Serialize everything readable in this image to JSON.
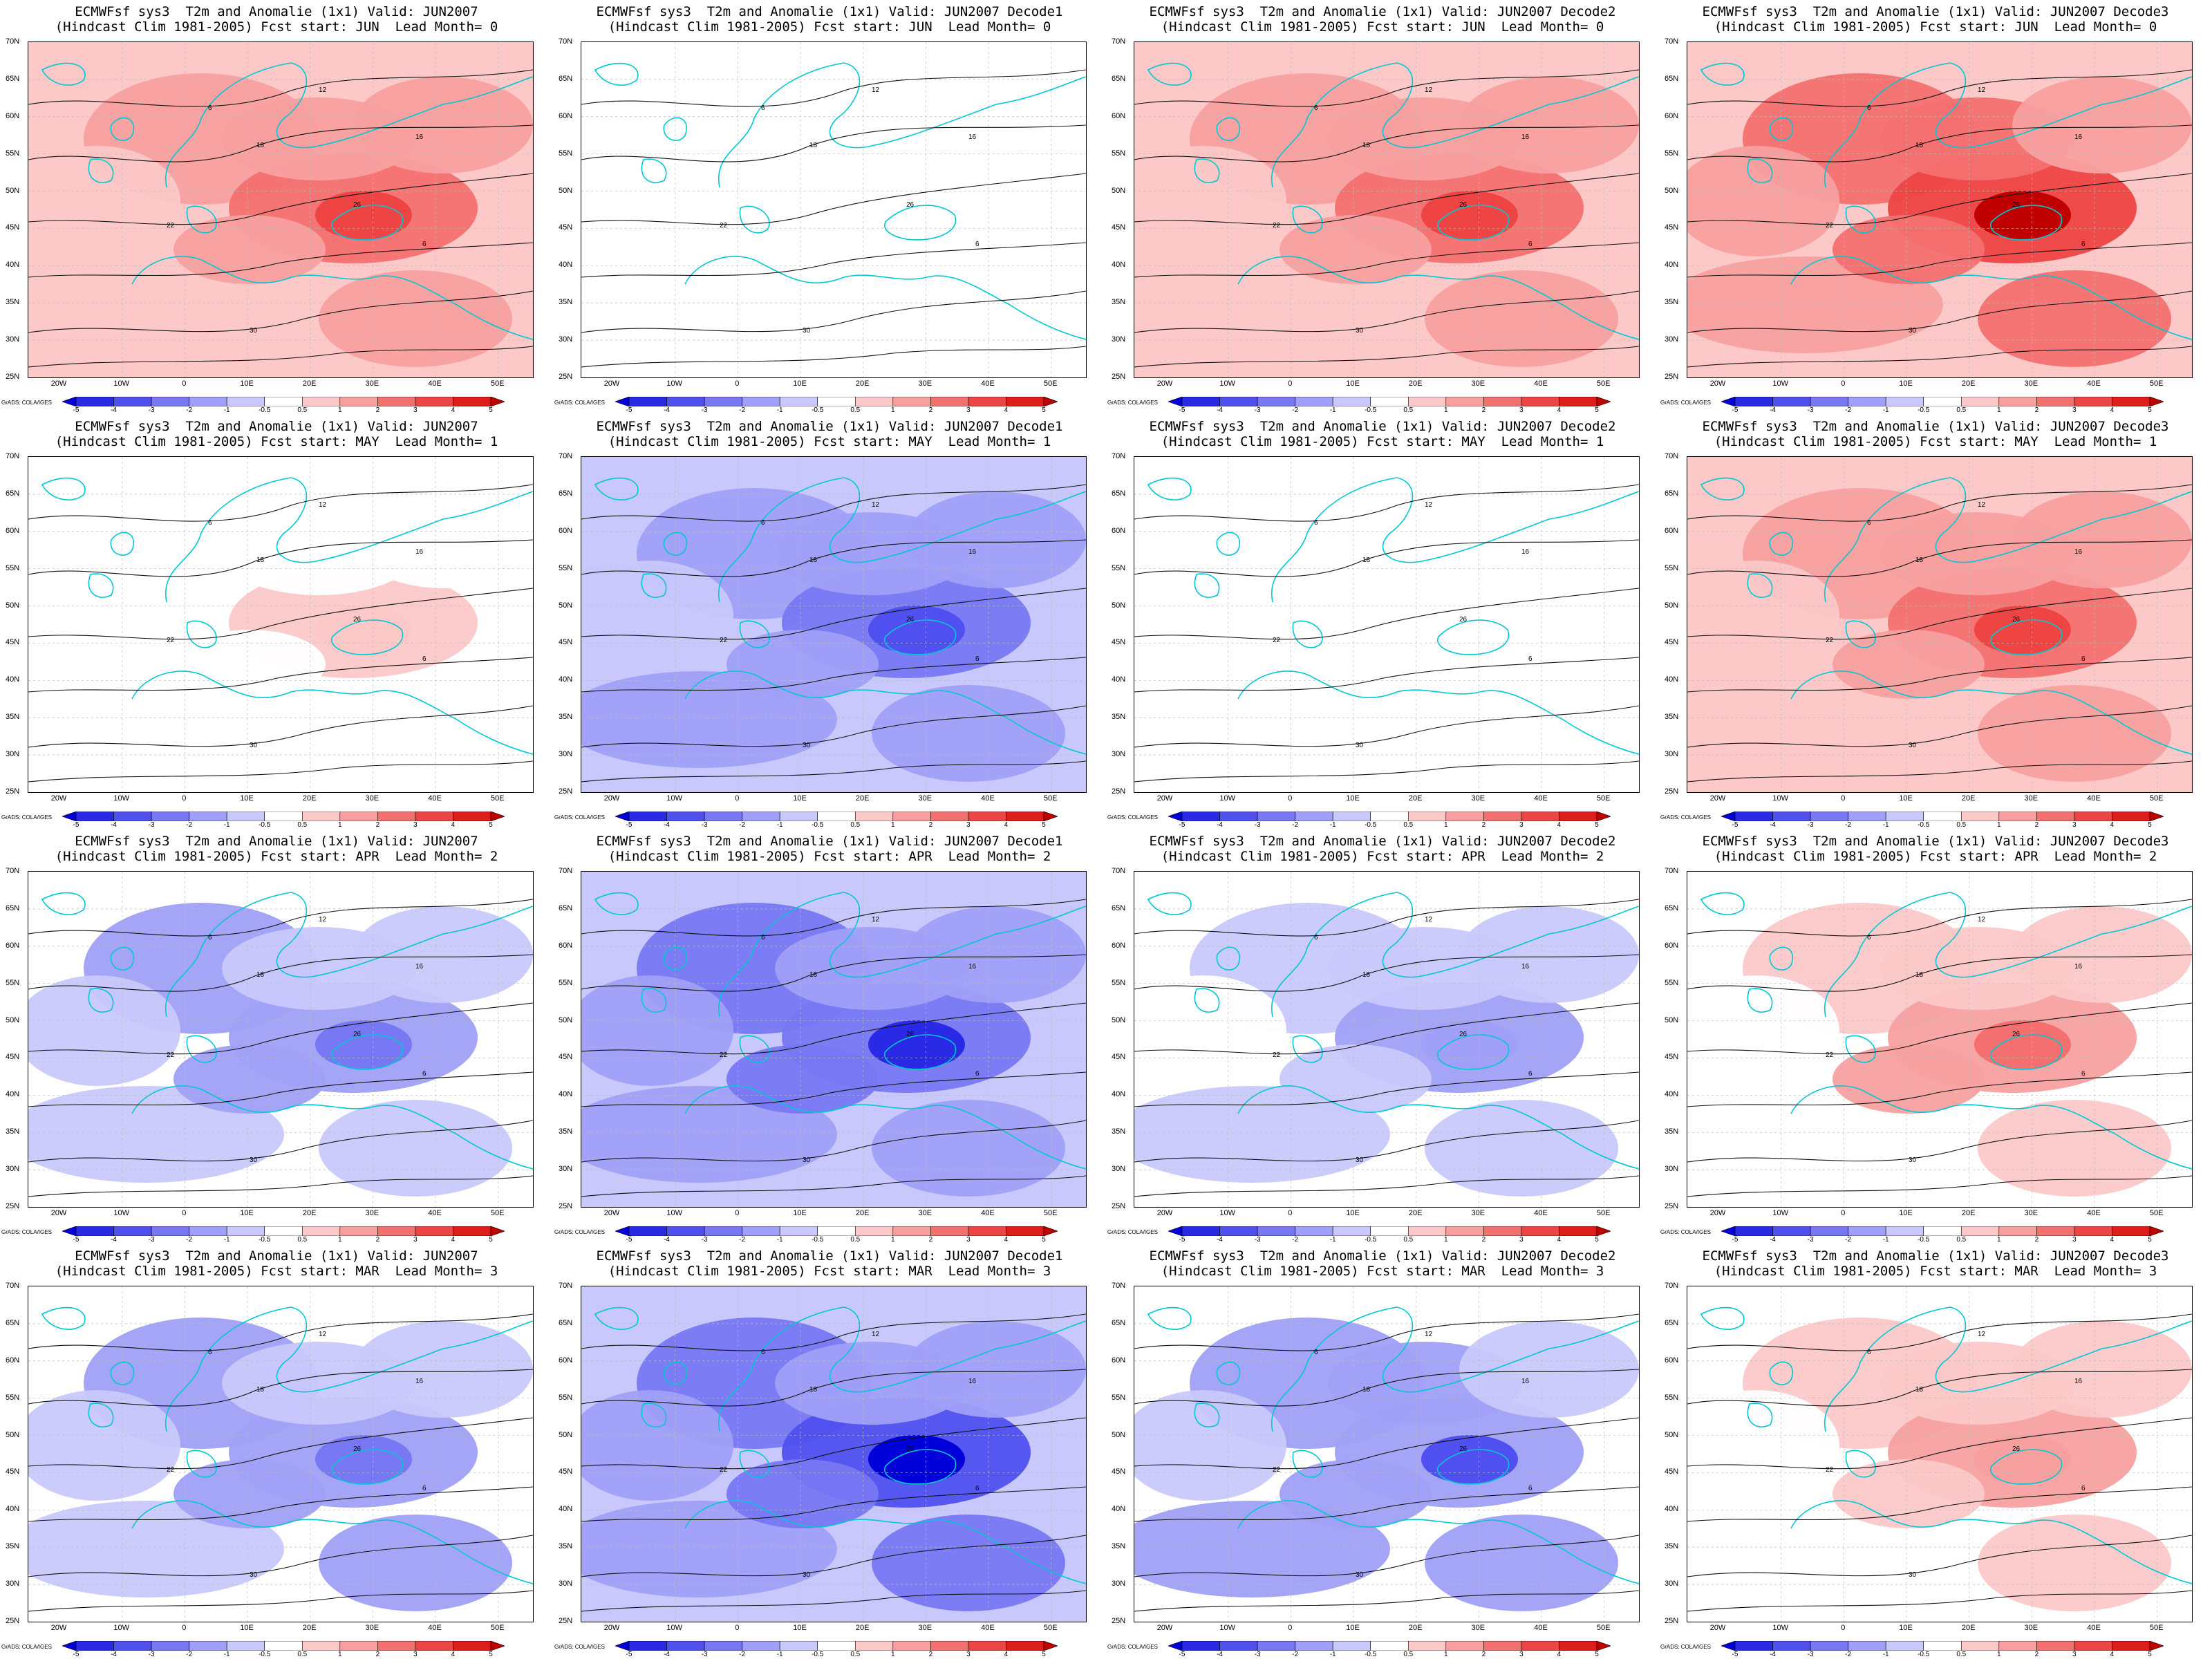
{
  "panels": [
    {
      "title1": "ECMWFsf sys3  T2m and Anomalie (1x1) Valid: JUN2007",
      "title2": "(Hindcast Clim 1981-2005) Fcst start: JUN  Lead Month= 0",
      "anom": 1.6
    },
    {
      "title1": "ECMWFsf sys3  T2m and Anomalie (1x1) Valid: JUN2007 Decode1",
      "title2": "(Hindcast Clim 1981-2005) Fcst start: JUN  Lead Month= 0",
      "anom": 0.2
    },
    {
      "title1": "ECMWFsf sys3  T2m and Anomalie (1x1) Valid: JUN2007 Decode2",
      "title2": "(Hindcast Clim 1981-2005) Fcst start: JUN  Lead Month= 0",
      "anom": 1.8
    },
    {
      "title1": "ECMWFsf sys3  T2m and Anomalie (1x1) Valid: JUN2007 Decode3",
      "title2": "(Hindcast Clim 1981-2005) Fcst start: JUN  Lead Month= 0",
      "anom": 2.6
    },
    {
      "title1": "ECMWFsf sys3  T2m and Anomalie (1x1) Valid: JUN2007",
      "title2": "(Hindcast Clim 1981-2005) Fcst start: MAY  Lead Month= 1",
      "anom": 0.4
    },
    {
      "title1": "ECMWFsf sys3  T2m and Anomalie (1x1) Valid: JUN2007 Decode1",
      "title2": "(Hindcast Clim 1981-2005) Fcst start: MAY  Lead Month= 1",
      "anom": -1.6
    },
    {
      "title1": "ECMWFsf sys3  T2m and Anomalie (1x1) Valid: JUN2007 Decode2",
      "title2": "(Hindcast Clim 1981-2005) Fcst start: MAY  Lead Month= 1",
      "anom": 0.2
    },
    {
      "title1": "ECMWFsf sys3  T2m and Anomalie (1x1) Valid: JUN2007 Decode3",
      "title2": "(Hindcast Clim 1981-2005) Fcst start: MAY  Lead Month= 1",
      "anom": 1.6
    },
    {
      "title1": "ECMWFsf sys3  T2m and Anomalie (1x1) Valid: JUN2007",
      "title2": "(Hindcast Clim 1981-2005) Fcst start: APR  Lead Month= 2",
      "anom": -1.0
    },
    {
      "title1": "ECMWFsf sys3  T2m and Anomalie (1x1) Valid: JUN2007 Decode1",
      "title2": "(Hindcast Clim 1981-2005) Fcst start: APR  Lead Month= 2",
      "anom": -2.2
    },
    {
      "title1": "ECMWFsf sys3  T2m and Anomalie (1x1) Valid: JUN2007 Decode2",
      "title2": "(Hindcast Clim 1981-2005) Fcst start: APR  Lead Month= 2",
      "anom": -0.9
    },
    {
      "title1": "ECMWFsf sys3  T2m and Anomalie (1x1) Valid: JUN2007 Decode3",
      "title2": "(Hindcast Clim 1981-2005) Fcst start: APR  Lead Month= 2",
      "anom": 1.0
    },
    {
      "title1": "ECMWFsf sys3  T2m and Anomalie (1x1) Valid: JUN2007",
      "title2": "(Hindcast Clim 1981-2005) Fcst start: MAR  Lead Month= 3",
      "anom": -1.2
    },
    {
      "title1": "ECMWFsf sys3  T2m and Anomalie (1x1) Valid: JUN2007 Decode1",
      "title2": "(Hindcast Clim 1981-2005) Fcst start: MAR  Lead Month= 3",
      "anom": -2.4
    },
    {
      "title1": "ECMWFsf sys3  T2m and Anomalie (1x1) Valid: JUN2007 Decode2",
      "title2": "(Hindcast Clim 1981-2005) Fcst start: MAR  Lead Month= 3",
      "anom": -1.4
    },
    {
      "title1": "ECMWFsf sys3  T2m and Anomalie (1x1) Valid: JUN2007 Decode3",
      "title2": "(Hindcast Clim 1981-2005) Fcst start: MAR  Lead Month= 3",
      "anom": 0.8
    }
  ],
  "lat_labels": [
    "70N",
    "65N",
    "60N",
    "55N",
    "50N",
    "45N",
    "40N",
    "35N",
    "30N",
    "25N"
  ],
  "lon_labels": [
    "20W",
    "10W",
    "0",
    "10E",
    "20E",
    "30E",
    "40E",
    "50E"
  ],
  "colorbar": {
    "labels": [
      "-5",
      "-4",
      "-3",
      "-2",
      "-1",
      "-0.5",
      "0.5",
      "1",
      "2",
      "3",
      "4",
      "5"
    ],
    "colors": [
      "#0000d8",
      "#2a2ae6",
      "#5050f0",
      "#7878f4",
      "#a0a0f8",
      "#c8c8fc",
      "#ffffff",
      "#fcc8c8",
      "#f8a0a0",
      "#f47070",
      "#ee4444",
      "#dd1c1c",
      "#c00000"
    ]
  },
  "credit": "GrADS: COLA/IGES",
  "contour_labels": [
    "6",
    "12",
    "16",
    "18",
    "22",
    "26",
    "30"
  ]
}
